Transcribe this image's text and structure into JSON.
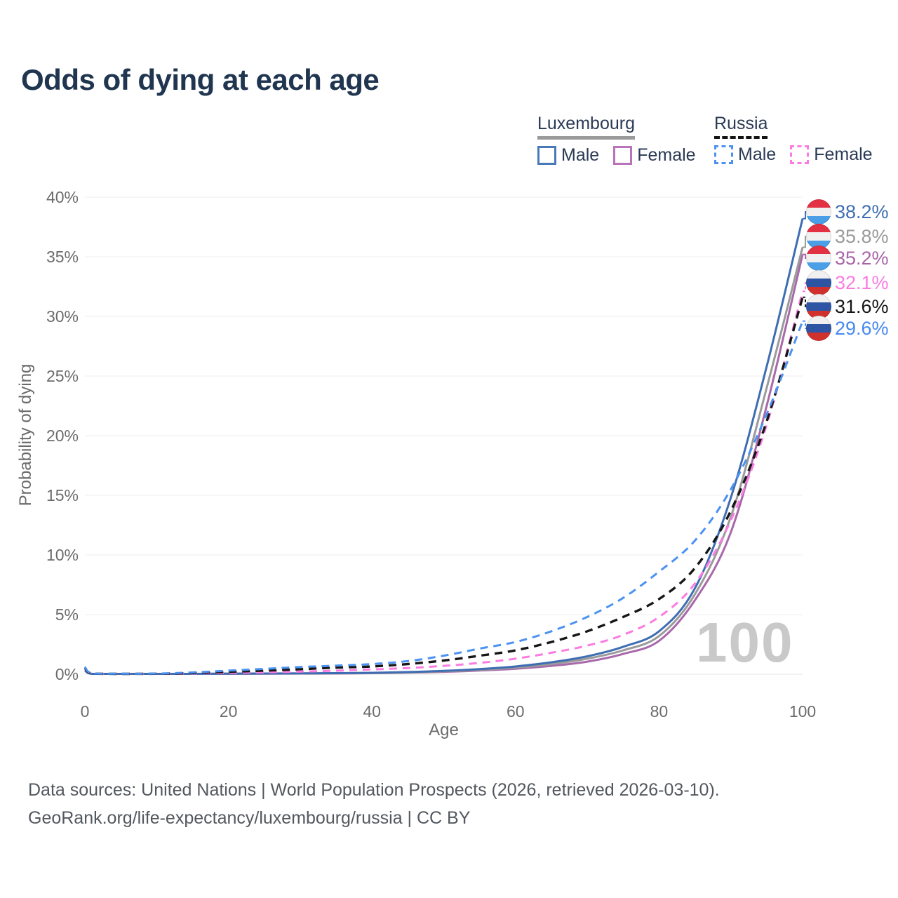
{
  "title": "Odds of dying at each age",
  "legend": {
    "groups": [
      {
        "country": "Luxembourg",
        "style": "solid",
        "line_color": "#9a9a9a",
        "items": [
          {
            "label": "Male",
            "color": "#4a79b8"
          },
          {
            "label": "Female",
            "color": "#b873ba"
          }
        ]
      },
      {
        "country": "Russia",
        "style": "dashed",
        "line_color": "#141414",
        "items": [
          {
            "label": "Male",
            "color": "#4c92f0"
          },
          {
            "label": "Female",
            "color": "#fa7ce2"
          }
        ]
      }
    ]
  },
  "chart_data": {
    "type": "line",
    "title": "Odds of dying at each age",
    "xlabel": "Age",
    "ylabel": "Probability of dying",
    "xlim": [
      0,
      100
    ],
    "ylim": [
      0,
      40
    ],
    "x_ticks": [
      0,
      20,
      40,
      60,
      80,
      100
    ],
    "y_ticks": [
      0,
      5,
      10,
      15,
      20,
      25,
      30,
      35,
      40
    ],
    "y_tick_suffix": "%",
    "grid": true,
    "legend_position": "top-right",
    "watermark_age": "100",
    "ages": [
      0,
      1,
      5,
      10,
      15,
      20,
      25,
      30,
      35,
      40,
      45,
      50,
      55,
      60,
      65,
      70,
      75,
      80,
      85,
      90,
      95,
      100
    ],
    "series": [
      {
        "name": "Luxembourg Female",
        "country": "Luxembourg",
        "sex": "Female",
        "style": "solid",
        "color": "#a868aa",
        "label_color": "#a765a8",
        "flag": "luxembourg",
        "end_label": "35.2%",
        "values": [
          0.3,
          0.02,
          0.01,
          0.01,
          0.02,
          0.03,
          0.04,
          0.05,
          0.06,
          0.09,
          0.13,
          0.2,
          0.31,
          0.46,
          0.7,
          1.05,
          1.7,
          2.8,
          6.2,
          11.9,
          22.5,
          35.2
        ]
      },
      {
        "name": "Luxembourg Both sexes",
        "country": "Luxembourg",
        "sex": "Both",
        "style": "solid",
        "color": "#9a9a9a",
        "label_color": "#9a9a9a",
        "flag": "luxembourg",
        "end_label": "35.8%",
        "values": [
          0.32,
          0.03,
          0.01,
          0.01,
          0.02,
          0.04,
          0.05,
          0.06,
          0.08,
          0.1,
          0.15,
          0.24,
          0.37,
          0.55,
          0.85,
          1.3,
          2.0,
          3.2,
          6.7,
          13.2,
          24.0,
          35.8
        ]
      },
      {
        "name": "Luxembourg Male",
        "country": "Luxembourg",
        "sex": "Male",
        "style": "solid",
        "color": "#3e6db2",
        "label_color": "#3e6db2",
        "flag": "luxembourg",
        "end_label": "38.2%",
        "values": [
          0.35,
          0.03,
          0.01,
          0.01,
          0.03,
          0.05,
          0.06,
          0.07,
          0.09,
          0.12,
          0.18,
          0.28,
          0.43,
          0.65,
          1.0,
          1.5,
          2.3,
          3.6,
          7.2,
          14.8,
          25.8,
          38.2
        ]
      },
      {
        "name": "Russia Female",
        "country": "Russia",
        "sex": "Female",
        "style": "dashed",
        "color": "#fa7ce2",
        "label_color": "#fa7ce2",
        "flag": "russia",
        "end_label": "32.1%",
        "values": [
          0.48,
          0.04,
          0.02,
          0.03,
          0.06,
          0.11,
          0.16,
          0.22,
          0.3,
          0.4,
          0.52,
          0.7,
          0.95,
          1.3,
          1.8,
          2.4,
          3.3,
          4.8,
          7.6,
          12.9,
          20.9,
          32.1
        ]
      },
      {
        "name": "Russia Both sexes",
        "country": "Russia",
        "sex": "Both",
        "style": "dashed",
        "color": "#161616",
        "label_color": "#141414",
        "flag": "russia",
        "end_label": "31.6%",
        "values": [
          0.55,
          0.05,
          0.03,
          0.04,
          0.1,
          0.2,
          0.3,
          0.42,
          0.55,
          0.65,
          0.85,
          1.15,
          1.55,
          2.0,
          2.7,
          3.6,
          4.8,
          6.3,
          8.9,
          13.7,
          21.2,
          31.6
        ]
      },
      {
        "name": "Russia Male",
        "country": "Russia",
        "sex": "Male",
        "style": "dashed",
        "color": "#4c92f0",
        "label_color": "#4589ef",
        "flag": "russia",
        "end_label": "29.6%",
        "values": [
          0.62,
          0.06,
          0.04,
          0.05,
          0.15,
          0.3,
          0.45,
          0.6,
          0.72,
          0.85,
          1.1,
          1.55,
          2.15,
          2.7,
          3.6,
          4.8,
          6.4,
          8.6,
          11.2,
          15.5,
          21.8,
          29.6
        ]
      }
    ],
    "flag_colors": {
      "luxembourg": [
        "#e23143",
        "#f0f0f0",
        "#4b9fe6"
      ],
      "russia": [
        "#f0f0f0",
        "#2e55a3",
        "#d0312d"
      ]
    }
  },
  "footer": {
    "line1": "Data sources: United Nations | World Population Prospects (2026, retrieved 2026-03-10).",
    "line2": "GeoRank.org/life-expectancy/luxembourg/russia | CC BY"
  }
}
